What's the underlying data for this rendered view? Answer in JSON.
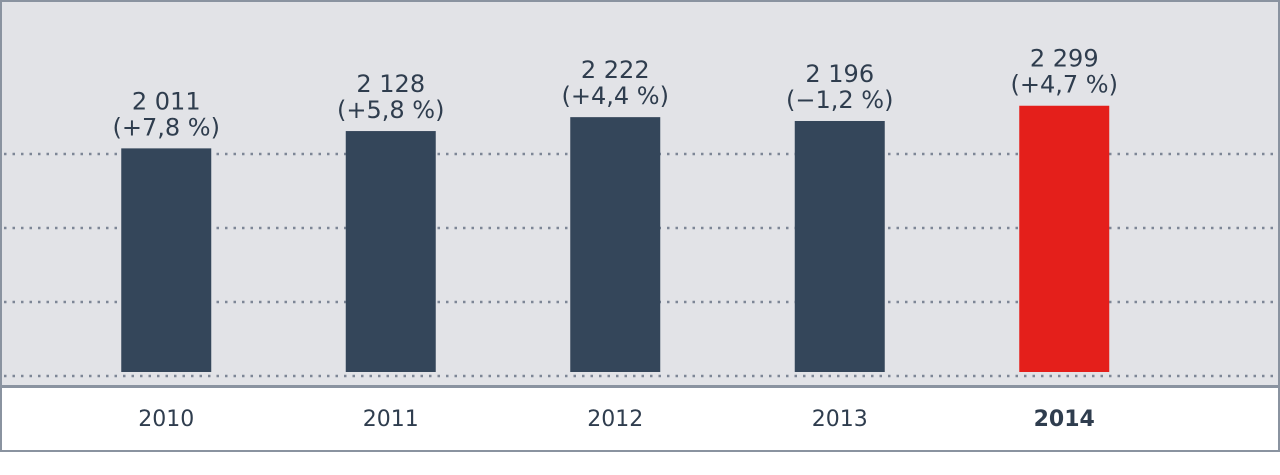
{
  "chart_data": {
    "type": "bar",
    "categories": [
      "2010",
      "2011",
      "2012",
      "2013",
      "2014"
    ],
    "values": [
      2011,
      2128,
      2222,
      2196,
      2299
    ],
    "value_labels": [
      "2 011",
      "2 128",
      "2 222",
      "2 196",
      "2 299"
    ],
    "changes": {
      "values": [
        7.8,
        5.8,
        4.4,
        -1.2,
        4.7
      ],
      "value_labels": [
        "(+7,8 %)",
        "(+5,8 %)",
        "(+4,4 %)",
        "(−1,2 %)",
        "(+4,7 %)"
      ]
    },
    "colors": [
      "#34465a",
      "#34465a",
      "#34465a",
      "#34465a",
      "#e41f1b"
    ],
    "bold_labels": [
      false,
      false,
      false,
      false,
      true
    ],
    "ylim": [
      500,
      3000
    ],
    "yticks": [
      500,
      1000,
      1500,
      2000
    ],
    "grid": true
  }
}
